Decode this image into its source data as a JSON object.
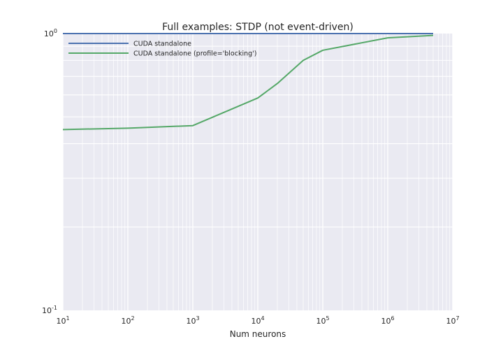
{
  "chart_data": {
    "type": "line",
    "title": "Full examples: STDP (not event-driven)",
    "xlabel": "Num neurons",
    "ylabel": "",
    "xscale": "log",
    "yscale": "log",
    "xlim": [
      10,
      10000000
    ],
    "ylim": [
      0.1,
      1.0
    ],
    "x_ticks": [
      {
        "base": "10",
        "exp": "1"
      },
      {
        "base": "10",
        "exp": "2"
      },
      {
        "base": "10",
        "exp": "3"
      },
      {
        "base": "10",
        "exp": "4"
      },
      {
        "base": "10",
        "exp": "5"
      },
      {
        "base": "10",
        "exp": "6"
      },
      {
        "base": "10",
        "exp": "7"
      }
    ],
    "y_ticks": [
      {
        "base": "10",
        "exp": "-1"
      },
      {
        "base": "10",
        "exp": "0"
      }
    ],
    "grid": true,
    "legend_position": "top-left",
    "series": [
      {
        "name": "CUDA standalone",
        "color": "#4c72b0",
        "x": [
          10,
          100,
          1000,
          10000,
          20000,
          50000,
          100000,
          1000000,
          5000000
        ],
        "y": [
          1.0,
          1.0,
          1.0,
          1.0,
          1.0,
          1.0,
          1.0,
          1.0,
          1.0
        ]
      },
      {
        "name": "CUDA standalone (profile='blocking')",
        "color": "#55a868",
        "x": [
          10,
          100,
          1000,
          10000,
          20000,
          50000,
          100000,
          1000000,
          5000000
        ],
        "y": [
          0.45,
          0.455,
          0.465,
          0.585,
          0.66,
          0.8,
          0.87,
          0.965,
          0.985
        ]
      }
    ]
  }
}
